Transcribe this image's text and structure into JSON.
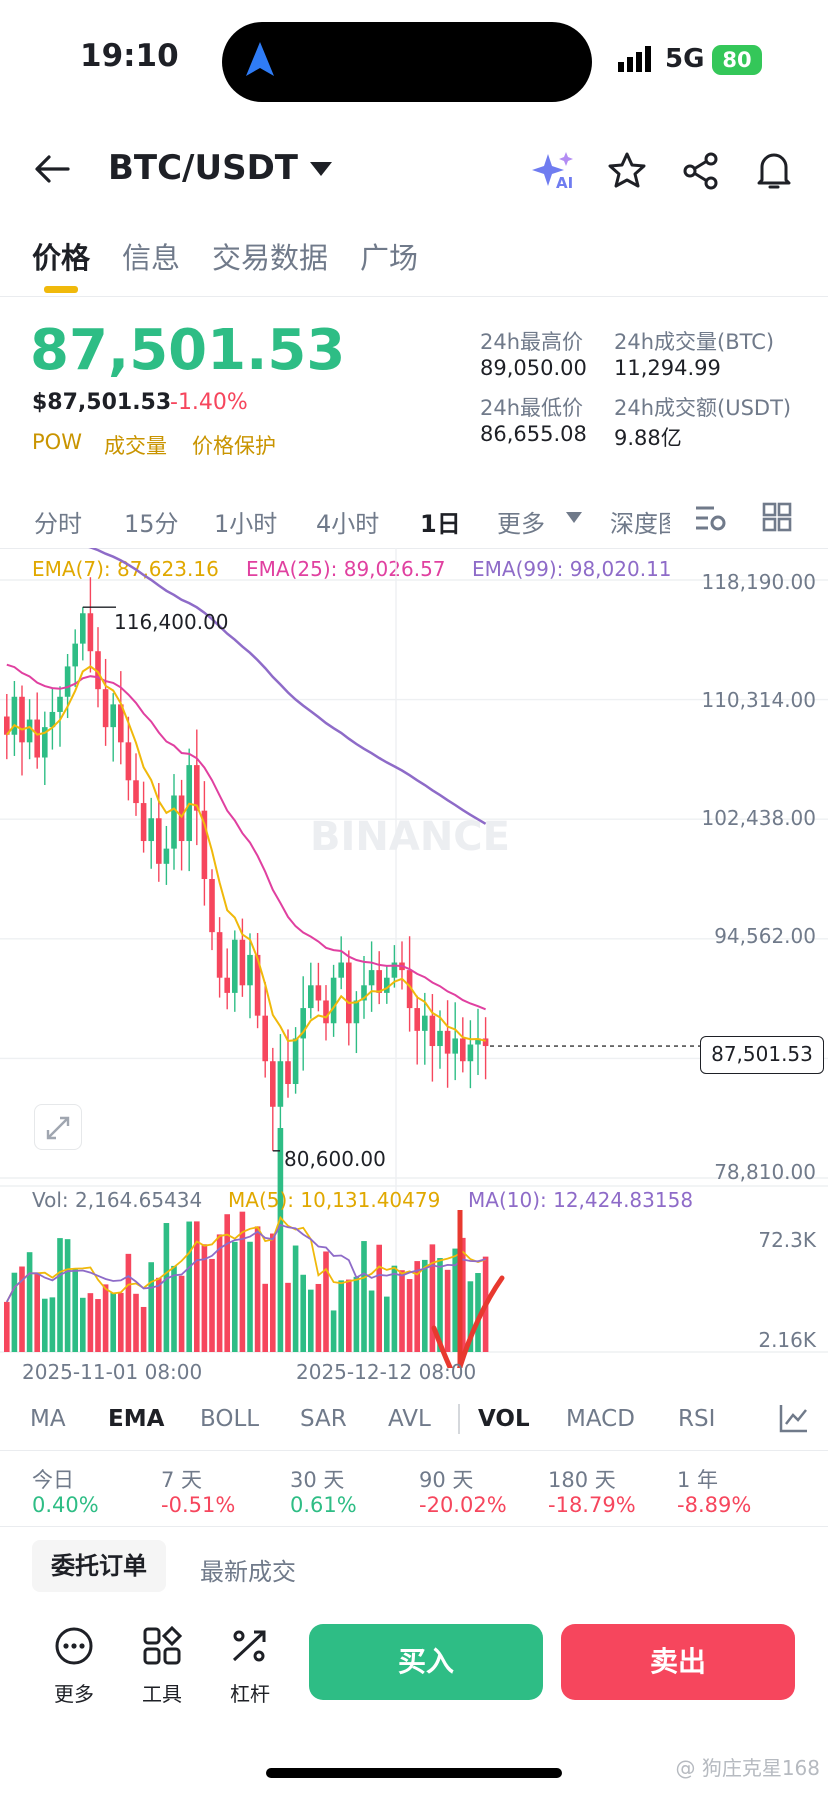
{
  "status_bar": {
    "time": "19:10",
    "network": "5G",
    "battery": "80"
  },
  "header": {
    "pair": "BTC/USDT",
    "ai_label": "AI"
  },
  "tabs": [
    "价格",
    "信息",
    "交易数据",
    "广场"
  ],
  "price": {
    "last": "87,501.53",
    "usd": "$87,501.53",
    "change": "-1.40%",
    "tags": [
      "POW",
      "成交量",
      "价格保护"
    ],
    "high_label": "24h最高价",
    "high": "89,050.00",
    "low_label": "24h最低价",
    "low": "86,655.08",
    "vol_btc_label": "24h成交量(BTC)",
    "vol_btc": "11,294.99",
    "vol_usdt_label": "24h成交额(USDT)",
    "vol_usdt": "9.88亿"
  },
  "intervals": [
    "分时",
    "15分",
    "1小时",
    "4小时",
    "1日",
    "更多",
    "深度图"
  ],
  "ema": {
    "ema7": "EMA(7): 87,623.16",
    "ema25": "EMA(25): 89,026.57",
    "ema99": "EMA(99): 98,020.11"
  },
  "price_axis": [
    "118,190.00",
    "110,314.00",
    "102,438.00",
    "94,562.00",
    "78,810.00"
  ],
  "current_price_tag": "87,501.53",
  "annotations": {
    "high": "116,400.00",
    "low": "80,600.00"
  },
  "watermark": "BINANCE",
  "volume": {
    "vol": "Vol: 2,164.65434",
    "ma5": "MA(5): 10,131.40479",
    "ma10": "MA(10): 12,424.83158",
    "axis_top": "72.3K",
    "axis_bottom": "2.16K"
  },
  "date_axis": [
    "2025-11-01 08:00",
    "2025-12-12 08:00"
  ],
  "indicators": [
    "MA",
    "EMA",
    "BOLL",
    "SAR",
    "AVL",
    "VOL",
    "MACD",
    "RSI"
  ],
  "performance": [
    {
      "period": "今日",
      "value": "0.40%"
    },
    {
      "period": "7 天",
      "value": "-0.51%"
    },
    {
      "period": "30 天",
      "value": "0.61%"
    },
    {
      "period": "90 天",
      "value": "-20.02%"
    },
    {
      "period": "180 天",
      "value": "-18.79%"
    },
    {
      "period": "1 年",
      "value": "-8.89%"
    }
  ],
  "order_tabs": [
    "委托订单",
    "最新成交"
  ],
  "tools": [
    "更多",
    "工具",
    "杠杆"
  ],
  "buttons": {
    "buy": "买入",
    "sell": "卖出"
  },
  "footer_watermark": "@ 狗庄克星168",
  "colors": {
    "up": "#2ebd85",
    "down": "#f6465d",
    "ema7": "#f0b90b",
    "ema25": "#e040a0",
    "ema99": "#8e6bc8",
    "accent": "#f0b90b"
  },
  "chart_data": {
    "type": "candlestick",
    "x_range": [
      "2025-11-01 08:00",
      "2025-12-12 08:00"
    ],
    "ylim": [
      78810,
      118190
    ],
    "closes": [
      108000,
      110500,
      107500,
      109000,
      106500,
      108500,
      109500,
      110500,
      112500,
      114000,
      116000,
      113500,
      111000,
      108500,
      110000,
      107500,
      105000,
      103500,
      101000,
      102500,
      99500,
      100500,
      104000,
      101000,
      106000,
      103000,
      98500,
      95000,
      92000,
      91000,
      94500,
      91500,
      93500,
      89500,
      86500,
      83500,
      86500,
      85000,
      88000,
      90000,
      91500,
      90500,
      89000,
      92000,
      93000,
      89000,
      90500,
      91500,
      92500,
      91000,
      92000,
      93000,
      92500,
      90000,
      88500,
      89500,
      87500,
      88500,
      87000,
      88000,
      86500,
      87600,
      88000,
      87500
    ],
    "annotated_high": 116400,
    "annotated_low": 80600,
    "current_price": 87501.53,
    "volume_range": [
      "2.16K",
      "72.3K"
    ]
  }
}
